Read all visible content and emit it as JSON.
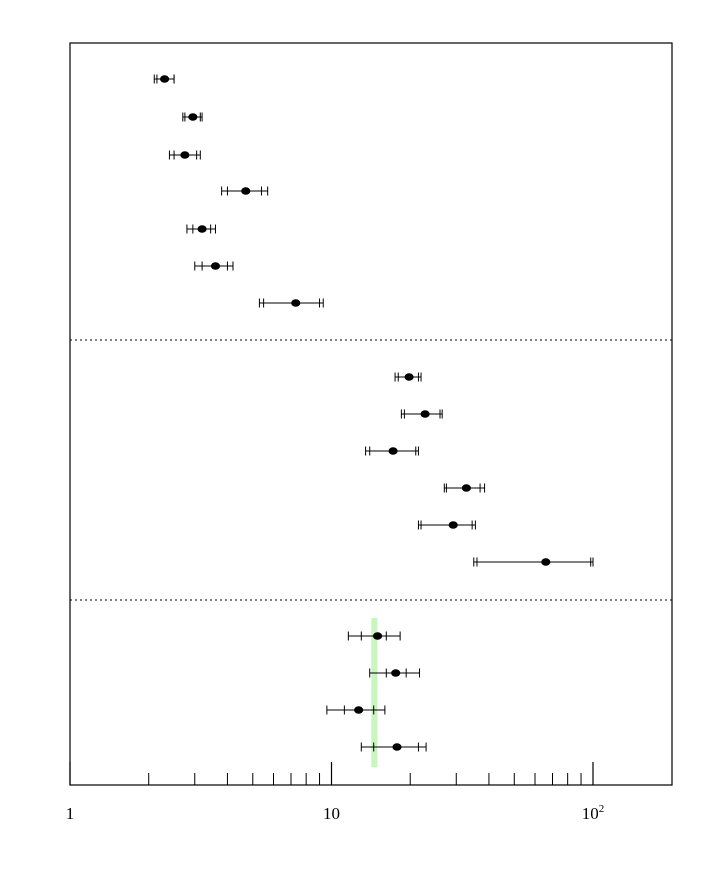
{
  "chart_data": {
    "type": "scatter",
    "title": "",
    "xlabel": "",
    "ylabel": "",
    "x_scale": "log",
    "xlim": [
      1,
      200
    ],
    "x_ticks_major": [
      {
        "value": 1,
        "label": "1"
      },
      {
        "value": 10,
        "label": "10"
      },
      {
        "value": 100,
        "label": "10",
        "exponent": "2"
      }
    ],
    "x_ticks_minor": [
      2,
      3,
      4,
      5,
      6,
      7,
      8,
      9,
      20,
      30,
      40,
      50,
      60,
      70,
      80,
      90
    ],
    "grid": false,
    "groups": [
      {
        "points": [
          {
            "x": 2.3,
            "stat_lo": 2.15,
            "stat_hi": 2.5,
            "tot_lo": 2.1,
            "tot_hi": 2.5
          },
          {
            "x": 2.95,
            "stat_lo": 2.75,
            "stat_hi": 3.15,
            "tot_lo": 2.7,
            "tot_hi": 3.2
          },
          {
            "x": 2.75,
            "stat_lo": 2.5,
            "stat_hi": 3.05,
            "tot_lo": 2.4,
            "tot_hi": 3.15
          },
          {
            "x": 4.7,
            "stat_lo": 4.0,
            "stat_hi": 5.4,
            "tot_lo": 3.8,
            "tot_hi": 5.7
          },
          {
            "x": 3.2,
            "stat_lo": 2.95,
            "stat_hi": 3.45,
            "tot_lo": 2.8,
            "tot_hi": 3.6
          },
          {
            "x": 3.6,
            "stat_lo": 3.2,
            "stat_hi": 4.0,
            "tot_lo": 3.0,
            "tot_hi": 4.2
          },
          {
            "x": 7.3,
            "stat_lo": 5.5,
            "stat_hi": 9.0,
            "tot_lo": 5.3,
            "tot_hi": 9.3
          }
        ]
      },
      {
        "points": [
          {
            "x": 19.8,
            "stat_lo": 18.0,
            "stat_hi": 21.5,
            "tot_lo": 17.5,
            "tot_hi": 22.0
          },
          {
            "x": 22.8,
            "stat_lo": 19.0,
            "stat_hi": 26.0,
            "tot_lo": 18.5,
            "tot_hi": 26.5
          },
          {
            "x": 17.2,
            "stat_lo": 14.0,
            "stat_hi": 21.0,
            "tot_lo": 13.5,
            "tot_hi": 21.5
          },
          {
            "x": 32.8,
            "stat_lo": 27.5,
            "stat_hi": 37.0,
            "tot_lo": 27.0,
            "tot_hi": 38.5
          },
          {
            "x": 29.2,
            "stat_lo": 22.0,
            "stat_hi": 34.5,
            "tot_lo": 21.5,
            "tot_hi": 35.5
          },
          {
            "x": 66.0,
            "stat_lo": 36.0,
            "stat_hi": 98.0,
            "tot_lo": 35.0,
            "tot_hi": 100.0
          }
        ]
      },
      {
        "points": [
          {
            "x": 15.0,
            "stat_lo": 13.0,
            "stat_hi": 16.2,
            "tot_lo": 11.6,
            "tot_hi": 18.3
          },
          {
            "x": 17.6,
            "stat_lo": 16.2,
            "stat_hi": 19.3,
            "tot_lo": 14.0,
            "tot_hi": 21.7
          },
          {
            "x": 12.7,
            "stat_lo": 11.2,
            "stat_hi": 14.5,
            "tot_lo": 9.6,
            "tot_hi": 16.0
          },
          {
            "x": 17.8,
            "stat_lo": 14.5,
            "stat_hi": 21.5,
            "tot_lo": 13.0,
            "tot_hi": 23.0
          }
        ]
      }
    ],
    "reference_band": {
      "x_lo": 14.2,
      "x_hi": 14.9,
      "group_index": 2
    },
    "band_color": "#c8f5c0",
    "marker_color": "#000000",
    "separator_style": "dotted"
  }
}
